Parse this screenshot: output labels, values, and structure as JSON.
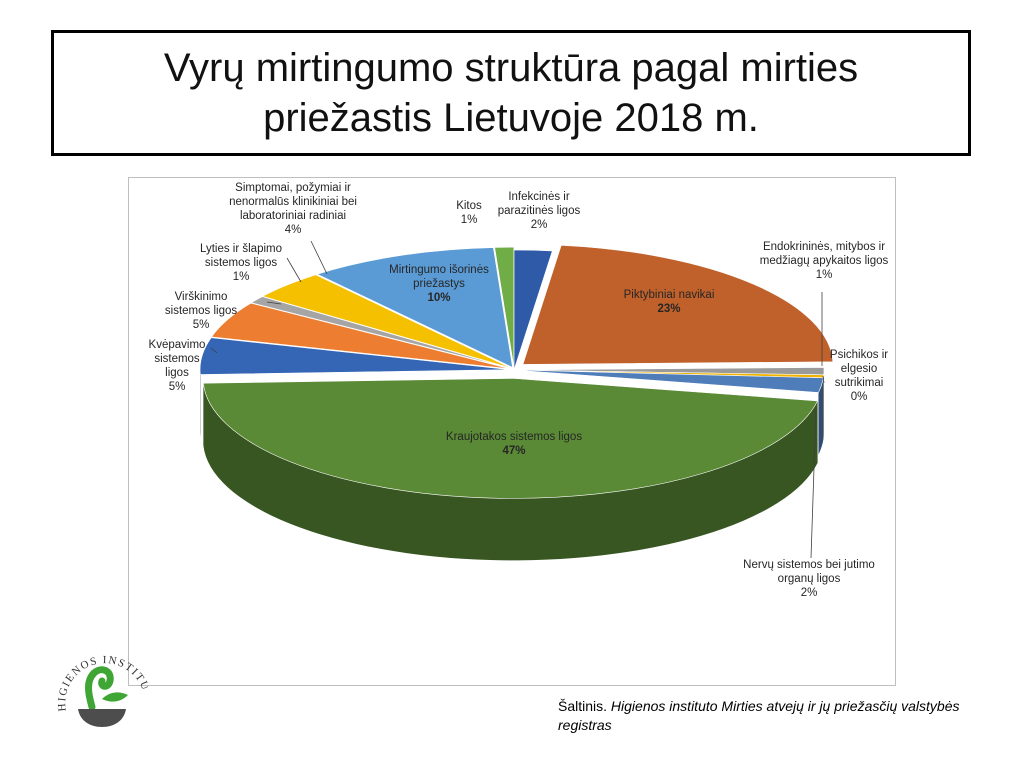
{
  "slide": {
    "title": "Vyrų mirtingumo struktūra pagal mirties priežastis Lietuvoje 2018 m.",
    "source_prefix": "Šaltinis.",
    "source_text": "Higienos instituto  Mirties atvejų ir jų priežasčių valstybės registras"
  },
  "logo": {
    "text": "HIGIENOS INSTITUTAS",
    "colors": {
      "plant": "#3fa535",
      "pot": "#4d4d4d"
    }
  },
  "chart_data": {
    "type": "pie",
    "style": "3d-exploded",
    "start_category": "Infekcinės ir parazitinės ligos",
    "slices": [
      {
        "name": "Infekcinės ir parazitinės ligos",
        "value": 2,
        "color": "#2e5aa8",
        "label_lines": [
          "Infekcinės ir",
          "parazitinės ligos"
        ],
        "value_label": "2%"
      },
      {
        "name": "Piktybiniai navikai",
        "value": 23,
        "color": "#c0612b",
        "label_lines": [
          "Piktybiniai navikai"
        ],
        "value_label": "23%"
      },
      {
        "name": "Endokrininės, mitybos ir medžiagų apykaitos ligos",
        "value": 1,
        "color": "#9a9a9a",
        "label_lines": [
          "Endokrininės, mitybos ir",
          "medžiagų apykaitos ligos"
        ],
        "value_label": "1%"
      },
      {
        "name": "Psichikos ir elgesio sutrikimai",
        "value": 0.4,
        "color": "#f0b400",
        "label_lines": [
          "Psichikos ir",
          "elgesio",
          "sutrikimai"
        ],
        "value_label": "0%"
      },
      {
        "name": "Nervų sistemos bei jutimo organų ligos",
        "value": 2,
        "color": "#4e7dba",
        "label_lines": [
          "Nervų sistemos bei jutimo",
          "organų ligos"
        ],
        "value_label": "2%"
      },
      {
        "name": "Kraujotakos sistemos ligos",
        "value": 47,
        "color": "#5a8a35",
        "label_lines": [
          "Kraujotakos sistemos ligos"
        ],
        "value_label": "47%"
      },
      {
        "name": "Kvėpavimo sistemos ligos",
        "value": 5,
        "color": "#3566b5",
        "label_lines": [
          "Kvėpavimo",
          "sistemos",
          "ligos"
        ],
        "value_label": "5%"
      },
      {
        "name": "Virškinimo sistemos ligos",
        "value": 5,
        "color": "#ed7d31",
        "label_lines": [
          "Virškinimo",
          "sistemos ligos"
        ],
        "value_label": "5%"
      },
      {
        "name": "Lyties ir šlapimo sistemos ligos",
        "value": 1,
        "color": "#a5a5a5",
        "label_lines": [
          "Lyties ir šlapimo",
          "sistemos ligos"
        ],
        "value_label": "1%"
      },
      {
        "name": "Simptomai, požymiai ir nenormalūs klinikiniai bei laboratoriniai radiniai",
        "value": 4,
        "color": "#f5c000",
        "label_lines": [
          "Simptomai, požymiai ir",
          "nenormalūs klinikiniai bei",
          "laboratoriniai radiniai"
        ],
        "value_label": "4%"
      },
      {
        "name": "Mirtingumo išorinės priežastys",
        "value": 10,
        "color": "#5b9bd5",
        "label_lines": [
          "Mirtingumo išorinės",
          "priežastys"
        ],
        "value_label": "10%"
      },
      {
        "name": "Kitos",
        "value": 1,
        "color": "#70ad47",
        "label_lines": [
          "Kitos"
        ],
        "value_label": "1%"
      }
    ]
  }
}
